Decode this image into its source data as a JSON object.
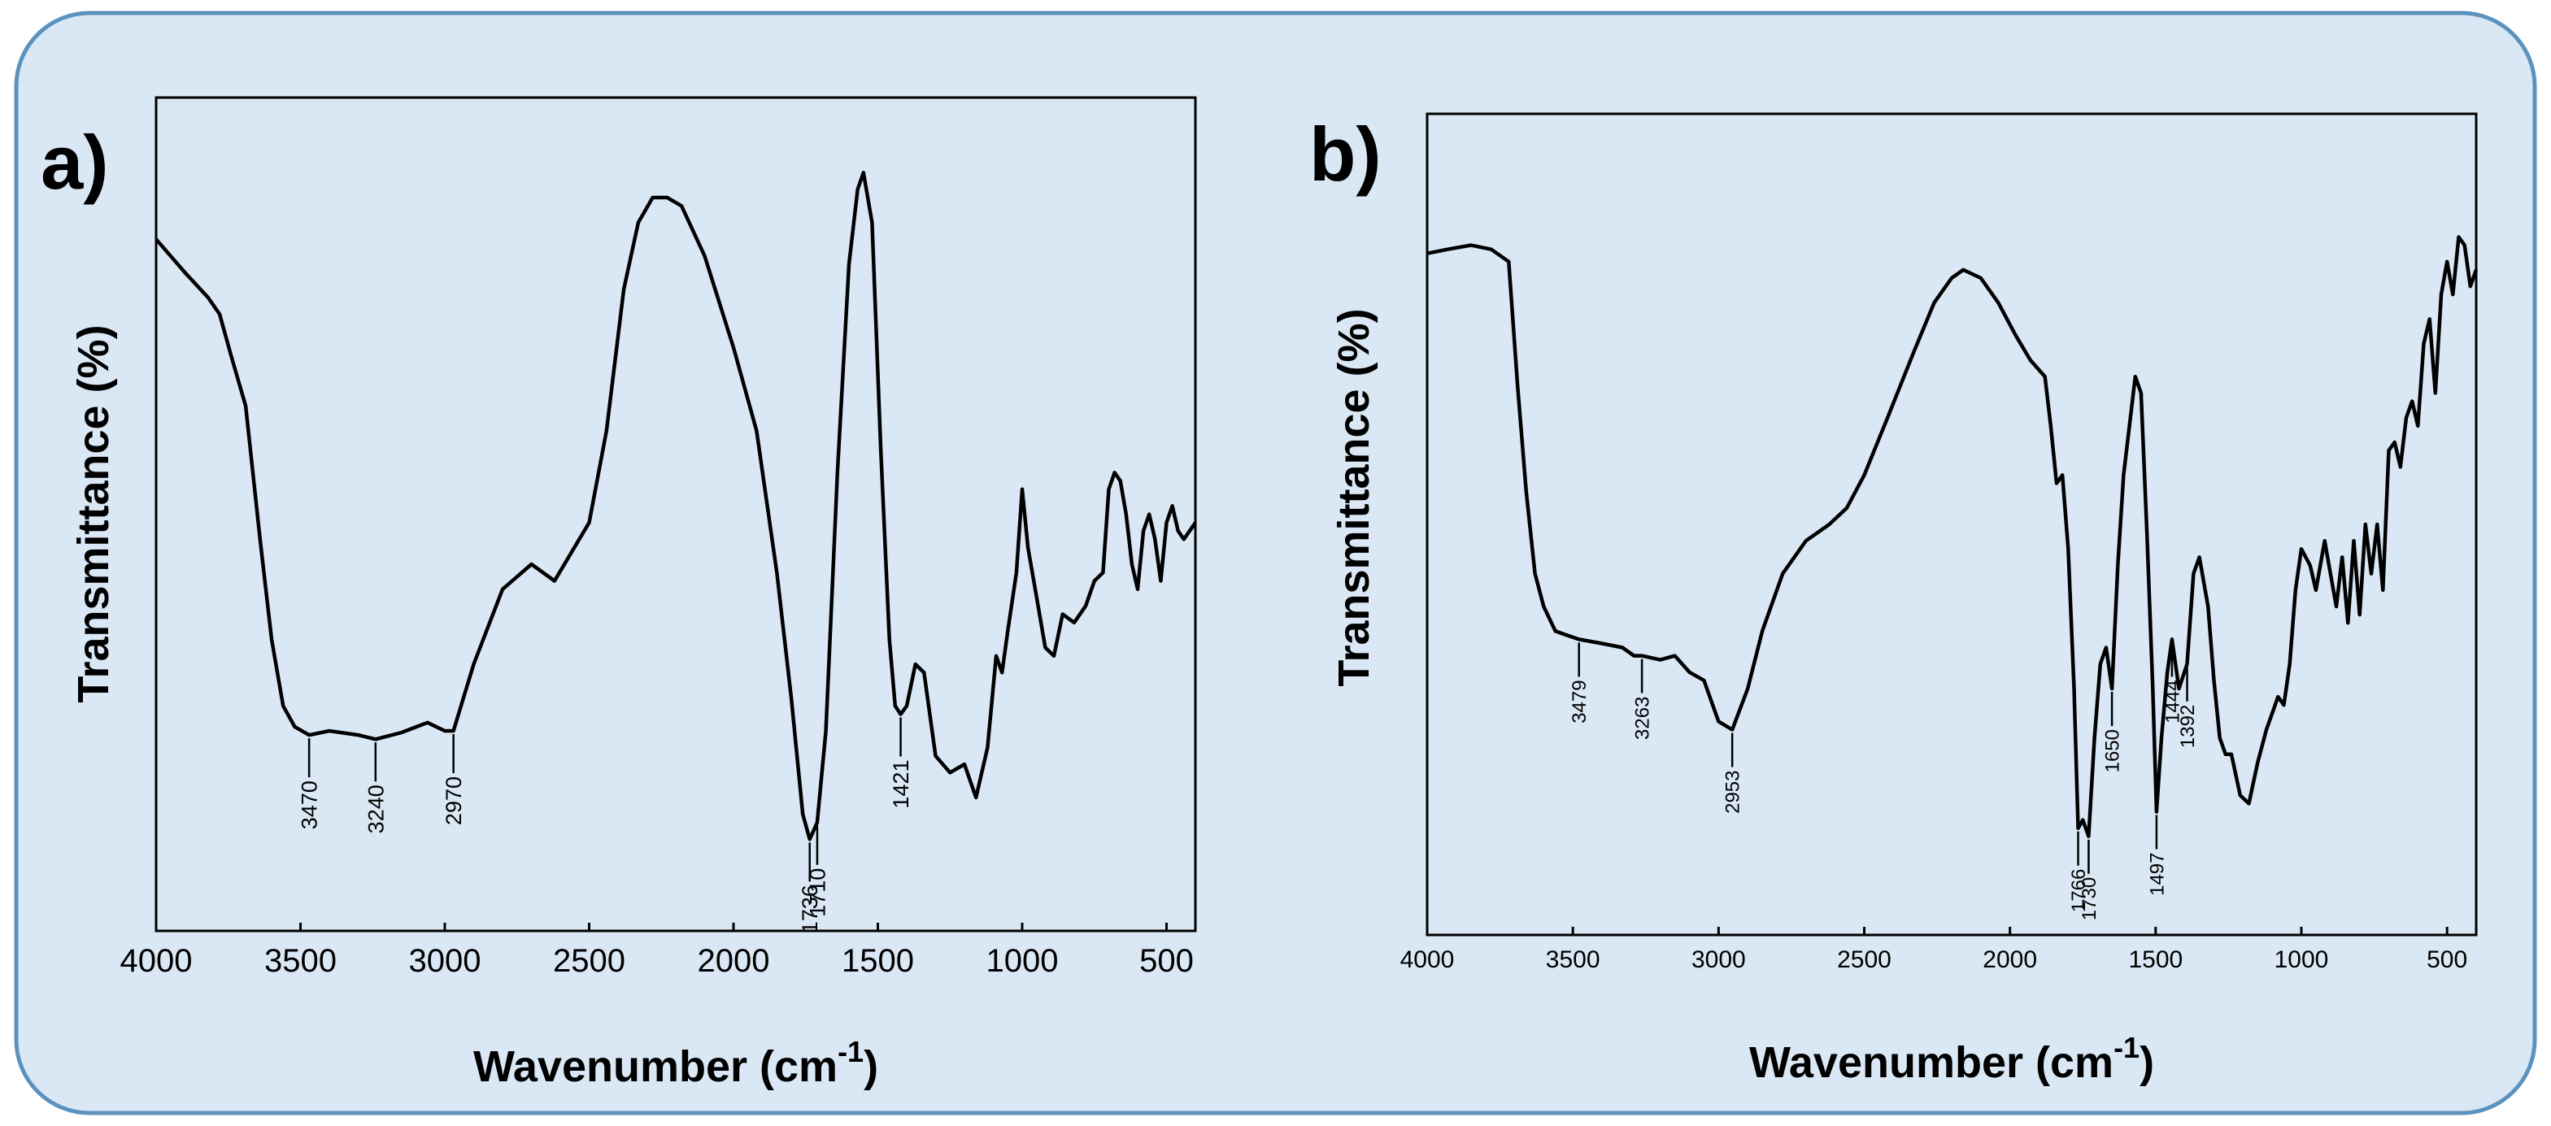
{
  "colors": {
    "background": "#dae8f5",
    "border": "#5b92be",
    "line": "#000000"
  },
  "chart_data": [
    {
      "type": "line",
      "panel_label": "a)",
      "xlabel": "Wavenumber (cm",
      "xlabel_sup": "-1",
      "xlabel_close": ")",
      "ylabel": "Transmittance (%)",
      "xlim": [
        4000,
        400
      ],
      "ylim": [
        0,
        100
      ],
      "xticks": [
        "4000",
        "3500",
        "3000",
        "2500",
        "2000",
        "1500",
        "1000",
        "500"
      ],
      "xtick_values": [
        4000,
        3500,
        3000,
        2500,
        2000,
        1500,
        1000,
        500
      ],
      "points": [
        [
          4000,
          83
        ],
        [
          3900,
          79
        ],
        [
          3820,
          76
        ],
        [
          3780,
          74
        ],
        [
          3740,
          69
        ],
        [
          3690,
          63
        ],
        [
          3640,
          47
        ],
        [
          3600,
          35
        ],
        [
          3560,
          27
        ],
        [
          3520,
          24.5
        ],
        [
          3470,
          23.5
        ],
        [
          3400,
          24
        ],
        [
          3300,
          23.5
        ],
        [
          3240,
          23
        ],
        [
          3150,
          23.8
        ],
        [
          3060,
          25
        ],
        [
          3000,
          24
        ],
        [
          2970,
          24
        ],
        [
          2900,
          32
        ],
        [
          2800,
          41
        ],
        [
          2700,
          44
        ],
        [
          2620,
          42
        ],
        [
          2500,
          49
        ],
        [
          2440,
          60
        ],
        [
          2380,
          77
        ],
        [
          2330,
          85
        ],
        [
          2280,
          88
        ],
        [
          2230,
          88
        ],
        [
          2180,
          87
        ],
        [
          2100,
          81
        ],
        [
          2000,
          70
        ],
        [
          1920,
          60
        ],
        [
          1850,
          43
        ],
        [
          1800,
          28
        ],
        [
          1760,
          14
        ],
        [
          1736,
          11
        ],
        [
          1710,
          13
        ],
        [
          1680,
          24
        ],
        [
          1640,
          55
        ],
        [
          1600,
          80
        ],
        [
          1570,
          89
        ],
        [
          1550,
          91
        ],
        [
          1520,
          85
        ],
        [
          1490,
          58
        ],
        [
          1460,
          35
        ],
        [
          1440,
          27
        ],
        [
          1421,
          26
        ],
        [
          1400,
          27
        ],
        [
          1370,
          32
        ],
        [
          1340,
          31
        ],
        [
          1300,
          21
        ],
        [
          1250,
          19
        ],
        [
          1200,
          20
        ],
        [
          1160,
          16
        ],
        [
          1120,
          22
        ],
        [
          1090,
          33
        ],
        [
          1070,
          31
        ],
        [
          1050,
          36
        ],
        [
          1020,
          43
        ],
        [
          1000,
          53
        ],
        [
          980,
          46
        ],
        [
          950,
          40
        ],
        [
          920,
          34
        ],
        [
          890,
          33
        ],
        [
          860,
          38
        ],
        [
          820,
          37
        ],
        [
          780,
          39
        ],
        [
          750,
          42
        ],
        [
          720,
          43
        ],
        [
          700,
          53
        ],
        [
          680,
          55
        ],
        [
          660,
          54
        ],
        [
          640,
          50
        ],
        [
          620,
          44
        ],
        [
          600,
          41
        ],
        [
          580,
          48
        ],
        [
          560,
          50
        ],
        [
          540,
          47
        ],
        [
          520,
          42
        ],
        [
          500,
          49
        ],
        [
          480,
          51
        ],
        [
          460,
          48
        ],
        [
          440,
          47
        ],
        [
          400,
          49
        ]
      ],
      "annotations": [
        {
          "label": "3470",
          "x": 3470,
          "y": 23.5
        },
        {
          "label": "3240",
          "x": 3240,
          "y": 23
        },
        {
          "label": "2970",
          "x": 2970,
          "y": 24
        },
        {
          "label": "1736",
          "x": 1736,
          "y": 11
        },
        {
          "label": "1710",
          "x": 1710,
          "y": 13
        },
        {
          "label": "1421",
          "x": 1421,
          "y": 26
        }
      ]
    },
    {
      "type": "line",
      "panel_label": "b)",
      "xlabel": "Wavenumber (cm",
      "xlabel_sup": "-1",
      "xlabel_close": ")",
      "ylabel": "Transmittance (%)",
      "xlim": [
        4000,
        400
      ],
      "ylim": [
        0,
        100
      ],
      "xticks": [
        "4000",
        "3500",
        "3000",
        "2500",
        "2000",
        "1500",
        "1000",
        "500"
      ],
      "xtick_values": [
        4000,
        3500,
        3000,
        2500,
        2000,
        1500,
        1000,
        500
      ],
      "points": [
        [
          4000,
          83
        ],
        [
          3930,
          83.5
        ],
        [
          3850,
          84
        ],
        [
          3780,
          83.5
        ],
        [
          3720,
          82
        ],
        [
          3690,
          67
        ],
        [
          3660,
          54
        ],
        [
          3630,
          44
        ],
        [
          3600,
          40
        ],
        [
          3560,
          37
        ],
        [
          3520,
          36.5
        ],
        [
          3479,
          36
        ],
        [
          3400,
          35.5
        ],
        [
          3330,
          35
        ],
        [
          3290,
          34
        ],
        [
          3263,
          34
        ],
        [
          3200,
          33.5
        ],
        [
          3150,
          34
        ],
        [
          3100,
          32
        ],
        [
          3050,
          31
        ],
        [
          3000,
          26
        ],
        [
          2953,
          25
        ],
        [
          2900,
          30
        ],
        [
          2850,
          37
        ],
        [
          2780,
          44
        ],
        [
          2700,
          48
        ],
        [
          2620,
          50
        ],
        [
          2560,
          52
        ],
        [
          2500,
          56
        ],
        [
          2420,
          63
        ],
        [
          2330,
          71
        ],
        [
          2260,
          77
        ],
        [
          2200,
          80
        ],
        [
          2160,
          81
        ],
        [
          2100,
          80
        ],
        [
          2040,
          77
        ],
        [
          1980,
          73
        ],
        [
          1930,
          70
        ],
        [
          1880,
          68
        ],
        [
          1860,
          62
        ],
        [
          1840,
          55
        ],
        [
          1820,
          56
        ],
        [
          1800,
          47
        ],
        [
          1780,
          30
        ],
        [
          1766,
          13
        ],
        [
          1750,
          14
        ],
        [
          1730,
          12
        ],
        [
          1710,
          24
        ],
        [
          1690,
          33
        ],
        [
          1670,
          35
        ],
        [
          1650,
          30
        ],
        [
          1630,
          45
        ],
        [
          1610,
          56
        ],
        [
          1590,
          62
        ],
        [
          1570,
          68
        ],
        [
          1550,
          66
        ],
        [
          1530,
          49
        ],
        [
          1510,
          30
        ],
        [
          1497,
          15
        ],
        [
          1480,
          24
        ],
        [
          1460,
          32
        ],
        [
          1444,
          36
        ],
        [
          1420,
          30
        ],
        [
          1392,
          33
        ],
        [
          1370,
          44
        ],
        [
          1350,
          46
        ],
        [
          1320,
          40
        ],
        [
          1300,
          31
        ],
        [
          1280,
          24
        ],
        [
          1260,
          22
        ],
        [
          1240,
          22
        ],
        [
          1210,
          17
        ],
        [
          1180,
          16
        ],
        [
          1150,
          21
        ],
        [
          1120,
          25
        ],
        [
          1100,
          27
        ],
        [
          1080,
          29
        ],
        [
          1060,
          28
        ],
        [
          1040,
          33
        ],
        [
          1020,
          42
        ],
        [
          1000,
          47
        ],
        [
          970,
          45
        ],
        [
          950,
          42
        ],
        [
          920,
          48
        ],
        [
          900,
          44
        ],
        [
          880,
          40
        ],
        [
          860,
          46
        ],
        [
          840,
          38
        ],
        [
          820,
          48
        ],
        [
          800,
          39
        ],
        [
          780,
          50
        ],
        [
          760,
          44
        ],
        [
          740,
          50
        ],
        [
          720,
          42
        ],
        [
          700,
          59
        ],
        [
          680,
          60
        ],
        [
          660,
          57
        ],
        [
          640,
          63
        ],
        [
          620,
          65
        ],
        [
          600,
          62
        ],
        [
          580,
          72
        ],
        [
          560,
          75
        ],
        [
          540,
          66
        ],
        [
          520,
          78
        ],
        [
          500,
          82
        ],
        [
          480,
          78
        ],
        [
          460,
          85
        ],
        [
          440,
          84
        ],
        [
          420,
          79
        ],
        [
          400,
          81
        ]
      ],
      "annotations": [
        {
          "label": "3479",
          "x": 3479,
          "y": 36
        },
        {
          "label": "3263",
          "x": 3263,
          "y": 34
        },
        {
          "label": "2953",
          "x": 2953,
          "y": 25
        },
        {
          "label": "1766",
          "x": 1766,
          "y": 13
        },
        {
          "label": "1730",
          "x": 1730,
          "y": 12
        },
        {
          "label": "1650",
          "x": 1650,
          "y": 30
        },
        {
          "label": "1497",
          "x": 1497,
          "y": 15
        },
        {
          "label": "1444",
          "x": 1444,
          "y": 36
        },
        {
          "label": "1392",
          "x": 1392,
          "y": 33
        }
      ]
    }
  ]
}
